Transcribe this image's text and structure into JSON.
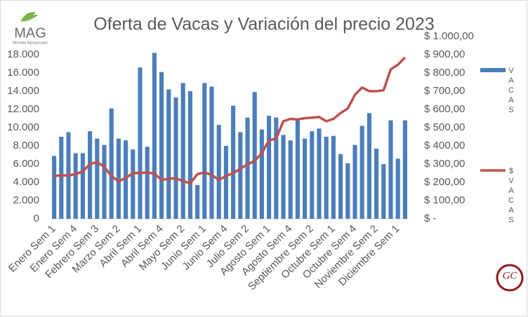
{
  "chart_data": {
    "type": "bar_line",
    "title": "Oferta de Vacas y Variación del precio 2023",
    "logos": {
      "mag": "MAG",
      "mag_sub": "Mercado Agropecuario",
      "gc": "GC"
    },
    "categories": [
      "Enero Sem 1",
      null,
      null,
      "Enero Sem 4",
      null,
      null,
      "Febrero Sem 3",
      null,
      null,
      "Marzo Sem 2",
      null,
      null,
      "Abril Sem 1",
      null,
      null,
      "Abril Sem 4",
      null,
      null,
      "Mayo Sem 2",
      null,
      null,
      "Junio Sem 1",
      null,
      null,
      "Junio Sem 4",
      null,
      null,
      "Julio Sem 2",
      null,
      null,
      "Agosto Sem 1",
      null,
      null,
      "Agosto Sem 4",
      null,
      null,
      "Septiembre Sem 2",
      null,
      null,
      "Octubre Sem 1",
      null,
      null,
      "Octubre Sem 4",
      null,
      null,
      "Noviembre Sem 2",
      null,
      null,
      "Diciembre Sem 1",
      null
    ],
    "series": [
      {
        "name": "VACAS",
        "color": "#4a7ebb",
        "kind": "bar",
        "axis": "y",
        "values": [
          6900,
          9000,
          9500,
          7200,
          7200,
          9600,
          8800,
          8100,
          12100,
          8800,
          8600,
          7600,
          16600,
          7900,
          18200,
          16100,
          14200,
          13300,
          14900,
          14000,
          3700,
          14900,
          14500,
          10300,
          8000,
          12400,
          9500,
          11100,
          13900,
          9800,
          11300,
          11100,
          9200,
          8600,
          10800,
          8800,
          9600,
          9900,
          9000,
          9100,
          7100,
          6100,
          8100,
          10200,
          11600,
          7700,
          6000,
          10800,
          6600,
          10800
        ]
      },
      {
        "name": "$VACAS",
        "color": "#c0504d",
        "kind": "line",
        "axis": "y2",
        "values": [
          235,
          238,
          238,
          245,
          260,
          300,
          312,
          285,
          235,
          205,
          225,
          250,
          252,
          254,
          248,
          213,
          220,
          222,
          207,
          195,
          245,
          255,
          240,
          213,
          235,
          250,
          275,
          298,
          318,
          360,
          430,
          440,
          535,
          548,
          545,
          552,
          555,
          558,
          535,
          548,
          580,
          605,
          680,
          720,
          700,
          700,
          705,
          820,
          845,
          885
        ]
      }
    ],
    "ylim": [
      0,
      20000
    ],
    "yticks": [
      0,
      {
        "value": 2000,
        "label": "2.000"
      },
      {
        "value": 4000,
        "label": "4.000"
      },
      {
        "value": 6000,
        "label": "6.000"
      },
      {
        "value": 8000,
        "label": "8.000"
      },
      {
        "value": 10000,
        "label": "10.000"
      },
      {
        "value": 12000,
        "label": "12.000"
      },
      {
        "value": 14000,
        "label": "14.000"
      },
      {
        "value": 16000,
        "label": "16.000"
      },
      {
        "value": 18000,
        "label": "18.000"
      }
    ],
    "y2lim": [
      0,
      1000
    ],
    "y2ticks": [
      {
        "value": 0,
        "label": "$ -"
      },
      {
        "value": 100,
        "label": "$ 100,00"
      },
      {
        "value": 200,
        "label": "$ 200,00"
      },
      {
        "value": 300,
        "label": "$ 300,00"
      },
      {
        "value": 400,
        "label": "$ 400,00"
      },
      {
        "value": 500,
        "label": "$ 500,00"
      },
      {
        "value": 600,
        "label": "$ 600,00"
      },
      {
        "value": 700,
        "label": "$ 700,00"
      },
      {
        "value": 800,
        "label": "$ 800,00"
      },
      {
        "value": 900,
        "label": "$ 900,00"
      },
      {
        "value": 1000,
        "label": "$ 1.000,00"
      }
    ],
    "grid": false,
    "legend": "right"
  }
}
